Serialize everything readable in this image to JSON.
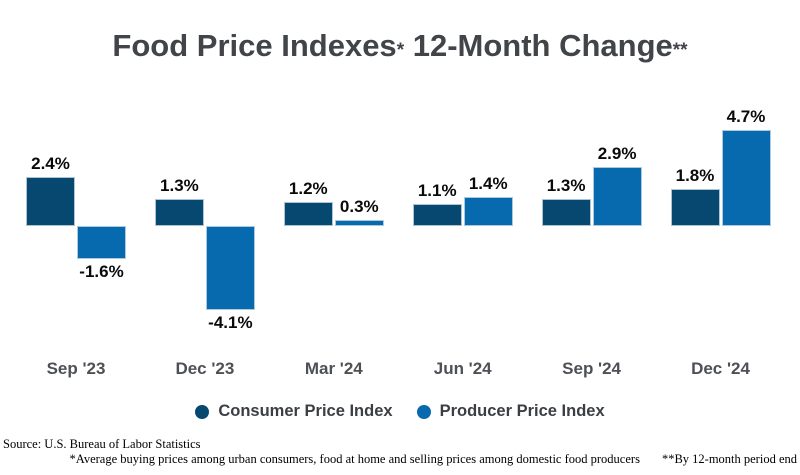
{
  "title": {
    "full": "Food Price Indexes* 12-Month Change**",
    "segments": [
      {
        "text": "Food Price Indexes"
      },
      {
        "text": "*"
      },
      {
        "text": " 12-Month Change"
      },
      {
        "text": "**"
      }
    ]
  },
  "chart_data": {
    "type": "bar",
    "title": "Food Price Indexes* 12-Month Change**",
    "categories": [
      "Sep '23",
      "Dec '23",
      "Mar '24",
      "Jun '24",
      "Sep '24",
      "Dec '24"
    ],
    "series": [
      {
        "name": "Consumer Price Index",
        "color": "#06486f",
        "values": [
          2.4,
          1.3,
          1.2,
          1.1,
          1.3,
          1.8
        ]
      },
      {
        "name": "Producer Price Index",
        "color": "#0769ae",
        "values": [
          -1.6,
          -4.1,
          0.3,
          1.4,
          2.9,
          4.7
        ]
      }
    ],
    "value_label_suffix": "%",
    "xlabel": "",
    "ylabel": "",
    "ylim": [
      -4.7,
      5.2
    ],
    "grid": false,
    "legend_position": "bottom"
  },
  "legend": {
    "items": [
      {
        "label": "Consumer Price Index",
        "color": "#06486f"
      },
      {
        "label": "Producer Price Index",
        "color": "#0769ae"
      }
    ]
  },
  "footer": {
    "source": "Source: U.S. Bureau of Labor Statistics",
    "footnote1": "*Average buying prices among urban consumers, food at home and selling prices among domestic food producers",
    "footnote2": "**By 12-month period end"
  }
}
